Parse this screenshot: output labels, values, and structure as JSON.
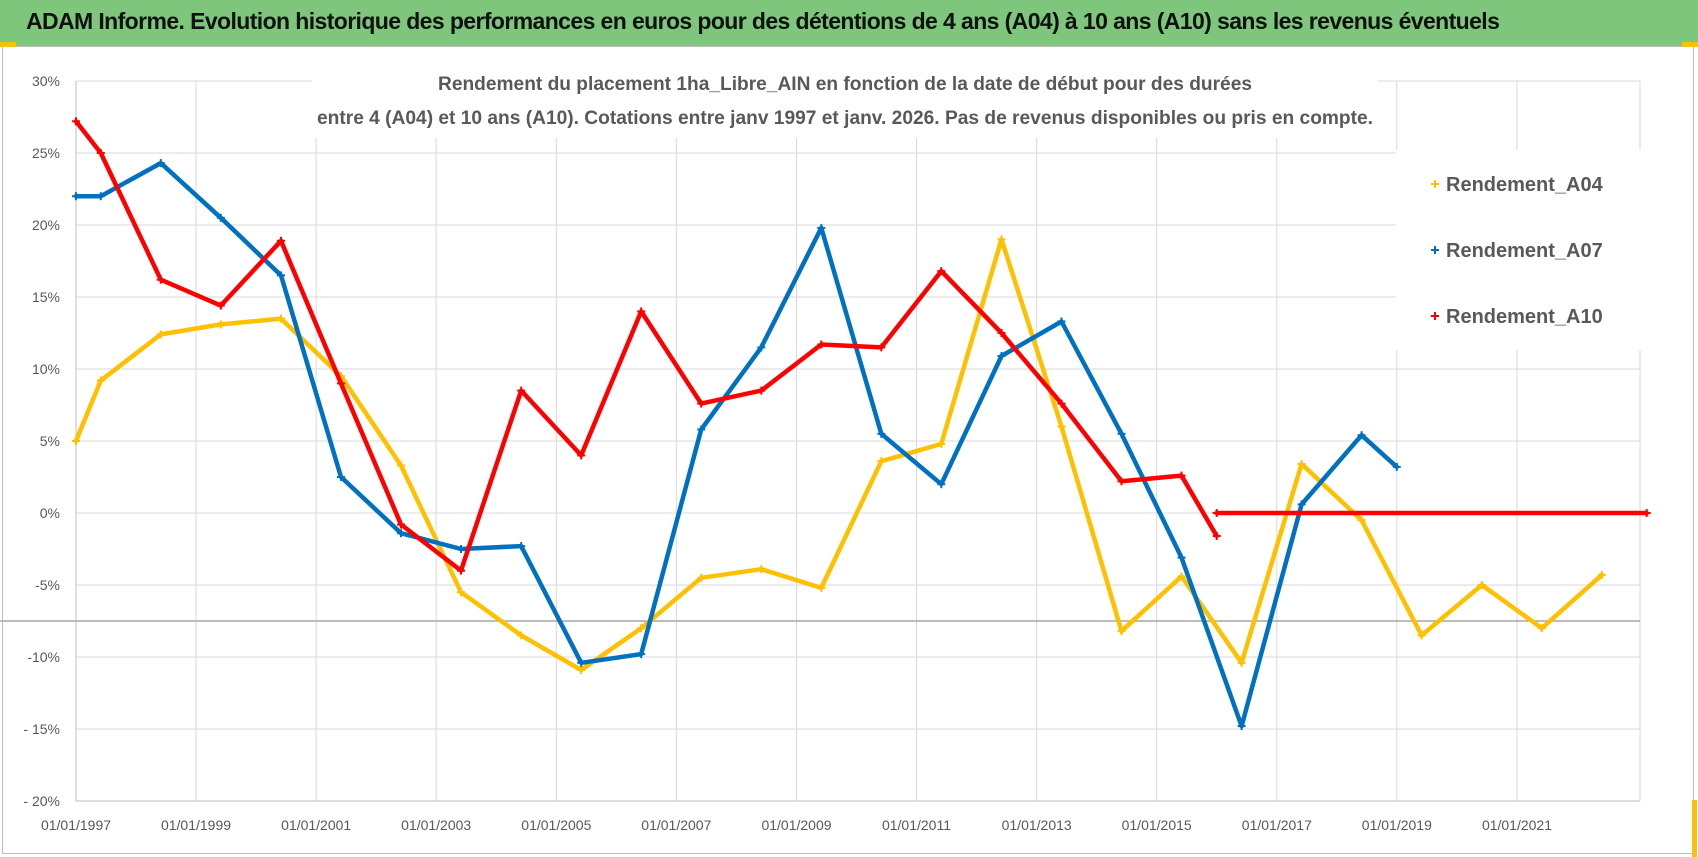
{
  "banner": {
    "title": "ADAM Informe. Evolution historique des performances en euros pour des détentions de 4 ans (A04) à 10 ans (A10) sans les revenus éventuels"
  },
  "colors": {
    "banner": "#7dc67b",
    "A04": "#ffc000",
    "A07": "#0070c0",
    "A10": "#ff0000",
    "grid": "#d9d9d9",
    "corner": "#f2c40f"
  },
  "chart_data": {
    "type": "line",
    "title_lines": [
      "Rendement du placement 1ha_Libre_AIN en fonction de la date de début pour des durées",
      "entre 4 (A04) et 10 ans (A10).  Cotations entre janv 1997 et janv. 2026. Pas de revenus disponibles ou pris en compte."
    ],
    "xlabel": "",
    "ylabel": "",
    "x_range": [
      "1997-01-01",
      "2023-03-01"
    ],
    "ylim": [
      -20,
      30
    ],
    "y_ticks": [
      {
        "v": 30,
        "label": "30%"
      },
      {
        "v": 25,
        "label": "25%"
      },
      {
        "v": 20,
        "label": "20%"
      },
      {
        "v": 15,
        "label": "15%"
      },
      {
        "v": 10,
        "label": "10%"
      },
      {
        "v": 5,
        "label": "5%"
      },
      {
        "v": 0,
        "label": "0%"
      },
      {
        "v": -5,
        "label": "-5%"
      },
      {
        "v": -10,
        "label": "-10%"
      },
      {
        "v": -15,
        "label": "- 15%"
      },
      {
        "v": -20,
        "label": "- 20%"
      }
    ],
    "x_ticks": [
      {
        "d": "1997-01-01",
        "label": "01/01/1997"
      },
      {
        "d": "1999-01-01",
        "label": "01/01/1999"
      },
      {
        "d": "2001-01-01",
        "label": "01/01/2001"
      },
      {
        "d": "2003-01-01",
        "label": "01/01/2003"
      },
      {
        "d": "2005-01-01",
        "label": "01/01/2005"
      },
      {
        "d": "2007-01-01",
        "label": "01/01/2007"
      },
      {
        "d": "2009-01-01",
        "label": "01/01/2009"
      },
      {
        "d": "2011-01-01",
        "label": "01/01/2011"
      },
      {
        "d": "2013-01-01",
        "label": "01/01/2013"
      },
      {
        "d": "2015-01-01",
        "label": "01/01/2015"
      },
      {
        "d": "2017-01-01",
        "label": "01/01/2017"
      },
      {
        "d": "2019-01-01",
        "label": "01/01/2019"
      },
      {
        "d": "2021-01-01",
        "label": "01/01/2021"
      }
    ],
    "extra_horizontal_line": -7.5,
    "legend_position": "right",
    "grid": true,
    "series": [
      {
        "name": "Rendement_A04",
        "color": "#ffc000",
        "segments": [
          [
            [
              "1997-01-01",
              5
            ],
            [
              "1997-06-01",
              9.2
            ],
            [
              "1998-06-01",
              12.4
            ],
            [
              "1999-06-01",
              13.1
            ],
            [
              "2000-06-01",
              13.5
            ],
            [
              "2001-06-01",
              9.5
            ],
            [
              "2002-06-01",
              3.3
            ],
            [
              "2003-06-01",
              -5.5
            ],
            [
              "2004-06-01",
              -8.5
            ],
            [
              "2005-06-01",
              -10.9
            ],
            [
              "2006-06-01",
              -8.0
            ],
            [
              "2007-06-01",
              -4.5
            ],
            [
              "2008-06-01",
              -3.9
            ],
            [
              "2009-06-01",
              -5.2
            ],
            [
              "2010-06-01",
              3.6
            ],
            [
              "2011-06-01",
              4.8
            ],
            [
              "2012-06-01",
              19.0
            ],
            [
              "2013-06-01",
              6.0
            ],
            [
              "2014-06-01",
              -8.2
            ],
            [
              "2015-06-01",
              -4.4
            ],
            [
              "2016-06-01",
              -10.4
            ],
            [
              "2017-06-01",
              3.4
            ],
            [
              "2018-06-01",
              -0.5
            ],
            [
              "2019-06-01",
              -8.5
            ],
            [
              "2020-06-01",
              -5.0
            ],
            [
              "2021-06-01",
              -8.0
            ],
            [
              "2022-06-01",
              -4.3
            ]
          ]
        ]
      },
      {
        "name": "Rendement_A07",
        "color": "#0070c0",
        "segments": [
          [
            [
              "1997-01-01",
              22.0
            ],
            [
              "1997-06-01",
              22.0
            ],
            [
              "1998-06-01",
              24.3
            ],
            [
              "1999-06-01",
              20.5
            ],
            [
              "2000-06-01",
              16.5
            ],
            [
              "2001-06-01",
              2.5
            ],
            [
              "2002-06-01",
              -1.4
            ],
            [
              "2003-06-01",
              -2.5
            ],
            [
              "2004-06-01",
              -2.3
            ],
            [
              "2005-06-01",
              -10.4
            ],
            [
              "2006-06-01",
              -9.8
            ],
            [
              "2007-06-01",
              5.8
            ],
            [
              "2008-06-01",
              11.5
            ],
            [
              "2009-06-01",
              19.8
            ],
            [
              "2010-06-01",
              5.5
            ],
            [
              "2011-06-01",
              2.0
            ],
            [
              "2012-06-01",
              10.9
            ],
            [
              "2013-06-01",
              13.3
            ],
            [
              "2014-06-01",
              5.5
            ],
            [
              "2015-06-01",
              -3.1
            ],
            [
              "2016-06-01",
              -14.8
            ],
            [
              "2017-06-01",
              0.6
            ],
            [
              "2018-06-01",
              5.4
            ],
            [
              "2019-01-01",
              3.2
            ]
          ]
        ]
      },
      {
        "name": "Rendement_A10",
        "color": "#ff0000",
        "segments": [
          [
            [
              "1997-01-01",
              27.2
            ],
            [
              "1997-06-01",
              25.0
            ],
            [
              "1998-06-01",
              16.2
            ],
            [
              "1999-06-01",
              14.4
            ],
            [
              "2000-06-01",
              18.9
            ],
            [
              "2001-06-01",
              9.0
            ],
            [
              "2002-06-01",
              -0.8
            ],
            [
              "2003-06-01",
              -4.0
            ],
            [
              "2004-06-01",
              8.5
            ],
            [
              "2005-06-01",
              4.0
            ],
            [
              "2006-06-01",
              14.0
            ],
            [
              "2007-06-01",
              7.6
            ],
            [
              "2008-06-01",
              8.5
            ],
            [
              "2009-06-01",
              11.7
            ],
            [
              "2010-06-01",
              11.5
            ],
            [
              "2011-06-01",
              16.8
            ],
            [
              "2012-06-01",
              12.5
            ],
            [
              "2013-06-01",
              7.6
            ],
            [
              "2014-06-01",
              2.2
            ],
            [
              "2015-06-01",
              2.6
            ],
            [
              "2016-01-01",
              -1.6
            ]
          ],
          [
            [
              "2016-01-01",
              0.0
            ],
            [
              "2023-03-01",
              0.0
            ]
          ]
        ]
      }
    ]
  }
}
